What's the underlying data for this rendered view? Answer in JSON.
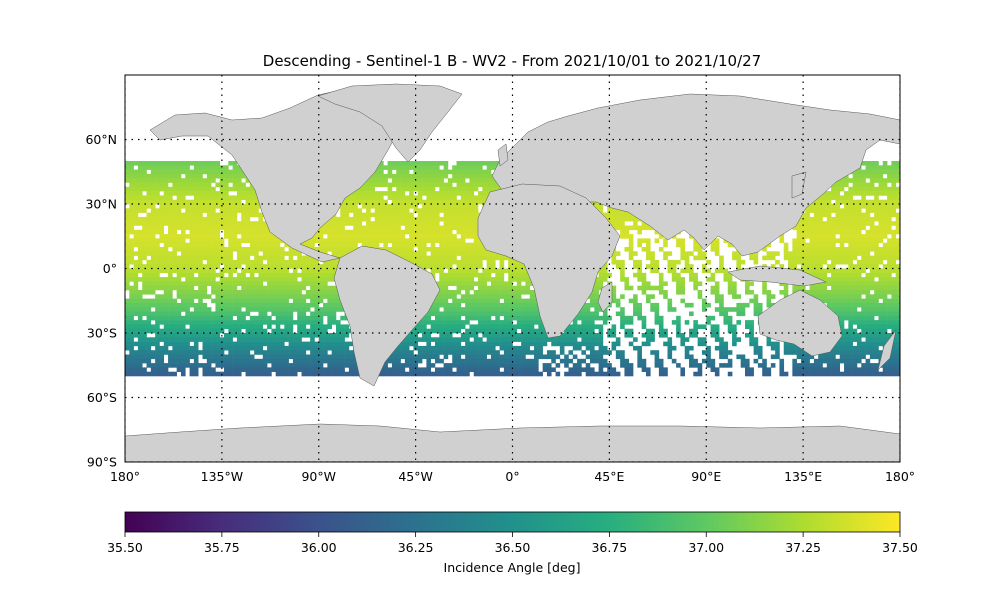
{
  "title": "Descending - Sentinel-1 B - WV2 - From 2021/10/01 to 2021/10/27",
  "map": {
    "projection": "plate-carree",
    "lon_range": [
      -180,
      180
    ],
    "lat_range": [
      -90,
      90
    ],
    "land_color": "#d0d0d0",
    "ocean_color": "#ffffff",
    "grid": true,
    "grid_style": "dotted",
    "lon_ticks": [
      {
        "value": -180,
        "label": "180°"
      },
      {
        "value": -135,
        "label": "135°W"
      },
      {
        "value": -90,
        "label": "90°W"
      },
      {
        "value": -45,
        "label": "45°W"
      },
      {
        "value": 0,
        "label": "0°"
      },
      {
        "value": 45,
        "label": "45°E"
      },
      {
        "value": 90,
        "label": "90°E"
      },
      {
        "value": 135,
        "label": "135°E"
      },
      {
        "value": 180,
        "label": "180°"
      }
    ],
    "lat_ticks": [
      {
        "value": 60,
        "label": "60°N"
      },
      {
        "value": 30,
        "label": "30°N"
      },
      {
        "value": 0,
        "label": "0°"
      },
      {
        "value": -30,
        "label": "30°S"
      },
      {
        "value": -60,
        "label": "60°S"
      },
      {
        "value": -90,
        "label": "90°S"
      }
    ]
  },
  "chart_data": {
    "type": "heatmap",
    "variable": "Incidence Angle [deg]",
    "colormap": "viridis",
    "vmin": 35.5,
    "vmax": 37.5,
    "coverage_lat_range": [
      -50,
      50
    ],
    "angle_profile": [
      {
        "lat": 50,
        "value": 37.05
      },
      {
        "lat": 40,
        "value": 37.2
      },
      {
        "lat": 30,
        "value": 37.33
      },
      {
        "lat": 15,
        "value": 37.38
      },
      {
        "lat": 0,
        "value": 37.3
      },
      {
        "lat": -10,
        "value": 37.15
      },
      {
        "lat": -20,
        "value": 36.95
      },
      {
        "lat": -30,
        "value": 36.65
      },
      {
        "lat": -40,
        "value": 36.35
      },
      {
        "lat": -50,
        "value": 36.1
      }
    ]
  },
  "colorbar": {
    "ticks": [
      "35.50",
      "35.75",
      "36.00",
      "36.25",
      "36.50",
      "36.75",
      "37.00",
      "37.25",
      "37.50"
    ],
    "label": "Incidence Angle [deg]"
  }
}
